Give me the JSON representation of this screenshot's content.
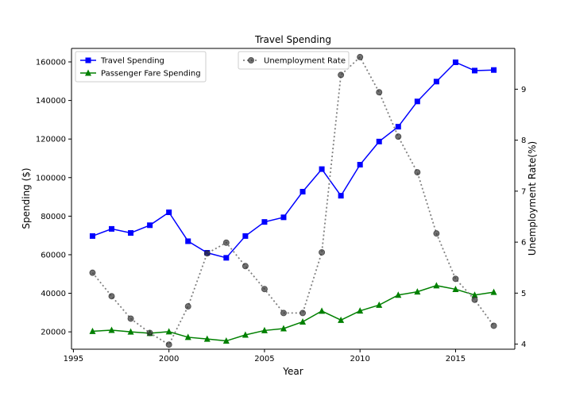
{
  "chart_data": {
    "type": "line",
    "title": "Travel Spending",
    "xlabel": "Year",
    "ylabel": "Spending ($)",
    "y2label": "Unemployment Rate(%)",
    "xlim": [
      1994.9,
      2018.1
    ],
    "ylim": [
      11000,
      167000
    ],
    "y2lim": [
      3.9,
      9.8
    ],
    "xticks": [
      1995,
      2000,
      2005,
      2010,
      2015
    ],
    "yticks": [
      20000,
      40000,
      60000,
      80000,
      100000,
      120000,
      140000,
      160000
    ],
    "y2ticks": [
      4,
      5,
      6,
      7,
      8,
      9
    ],
    "x": [
      1996,
      1997,
      1998,
      1999,
      2000,
      2001,
      2002,
      2003,
      2004,
      2005,
      2006,
      2007,
      2008,
      2009,
      2010,
      2011,
      2012,
      2013,
      2014,
      2015,
      2016,
      2017
    ],
    "series": [
      {
        "name": "Travel Spending",
        "axis": "left",
        "color": "#0000ff",
        "marker": "square",
        "line": "solid",
        "values": [
          69700,
          73400,
          71300,
          75300,
          82000,
          67000,
          61000,
          58400,
          69700,
          77000,
          79400,
          92700,
          104400,
          90600,
          106700,
          118700,
          126400,
          139500,
          149800,
          159800,
          155500,
          155800
        ]
      },
      {
        "name": "Passenger Fare Spending",
        "axis": "left",
        "color": "#008000",
        "marker": "triangle",
        "line": "solid",
        "values": [
          20300,
          20900,
          20000,
          19300,
          20100,
          17200,
          16300,
          15300,
          18400,
          20700,
          21700,
          25200,
          30800,
          26100,
          30900,
          33900,
          39100,
          40800,
          44000,
          42100,
          39100,
          40600
        ]
      },
      {
        "name": "Unemployment Rate",
        "axis": "right",
        "color": "#808080",
        "marker": "circle",
        "line": "dotted",
        "values": [
          5.4,
          4.94,
          4.5,
          4.22,
          3.99,
          4.74,
          5.78,
          5.99,
          5.53,
          5.08,
          4.61,
          4.61,
          5.8,
          9.28,
          9.63,
          8.94,
          8.07,
          7.37,
          6.17,
          5.28,
          4.87,
          4.36
        ]
      }
    ],
    "legend_left": "upper-left",
    "legend_right": "upper-center",
    "grid": false
  }
}
